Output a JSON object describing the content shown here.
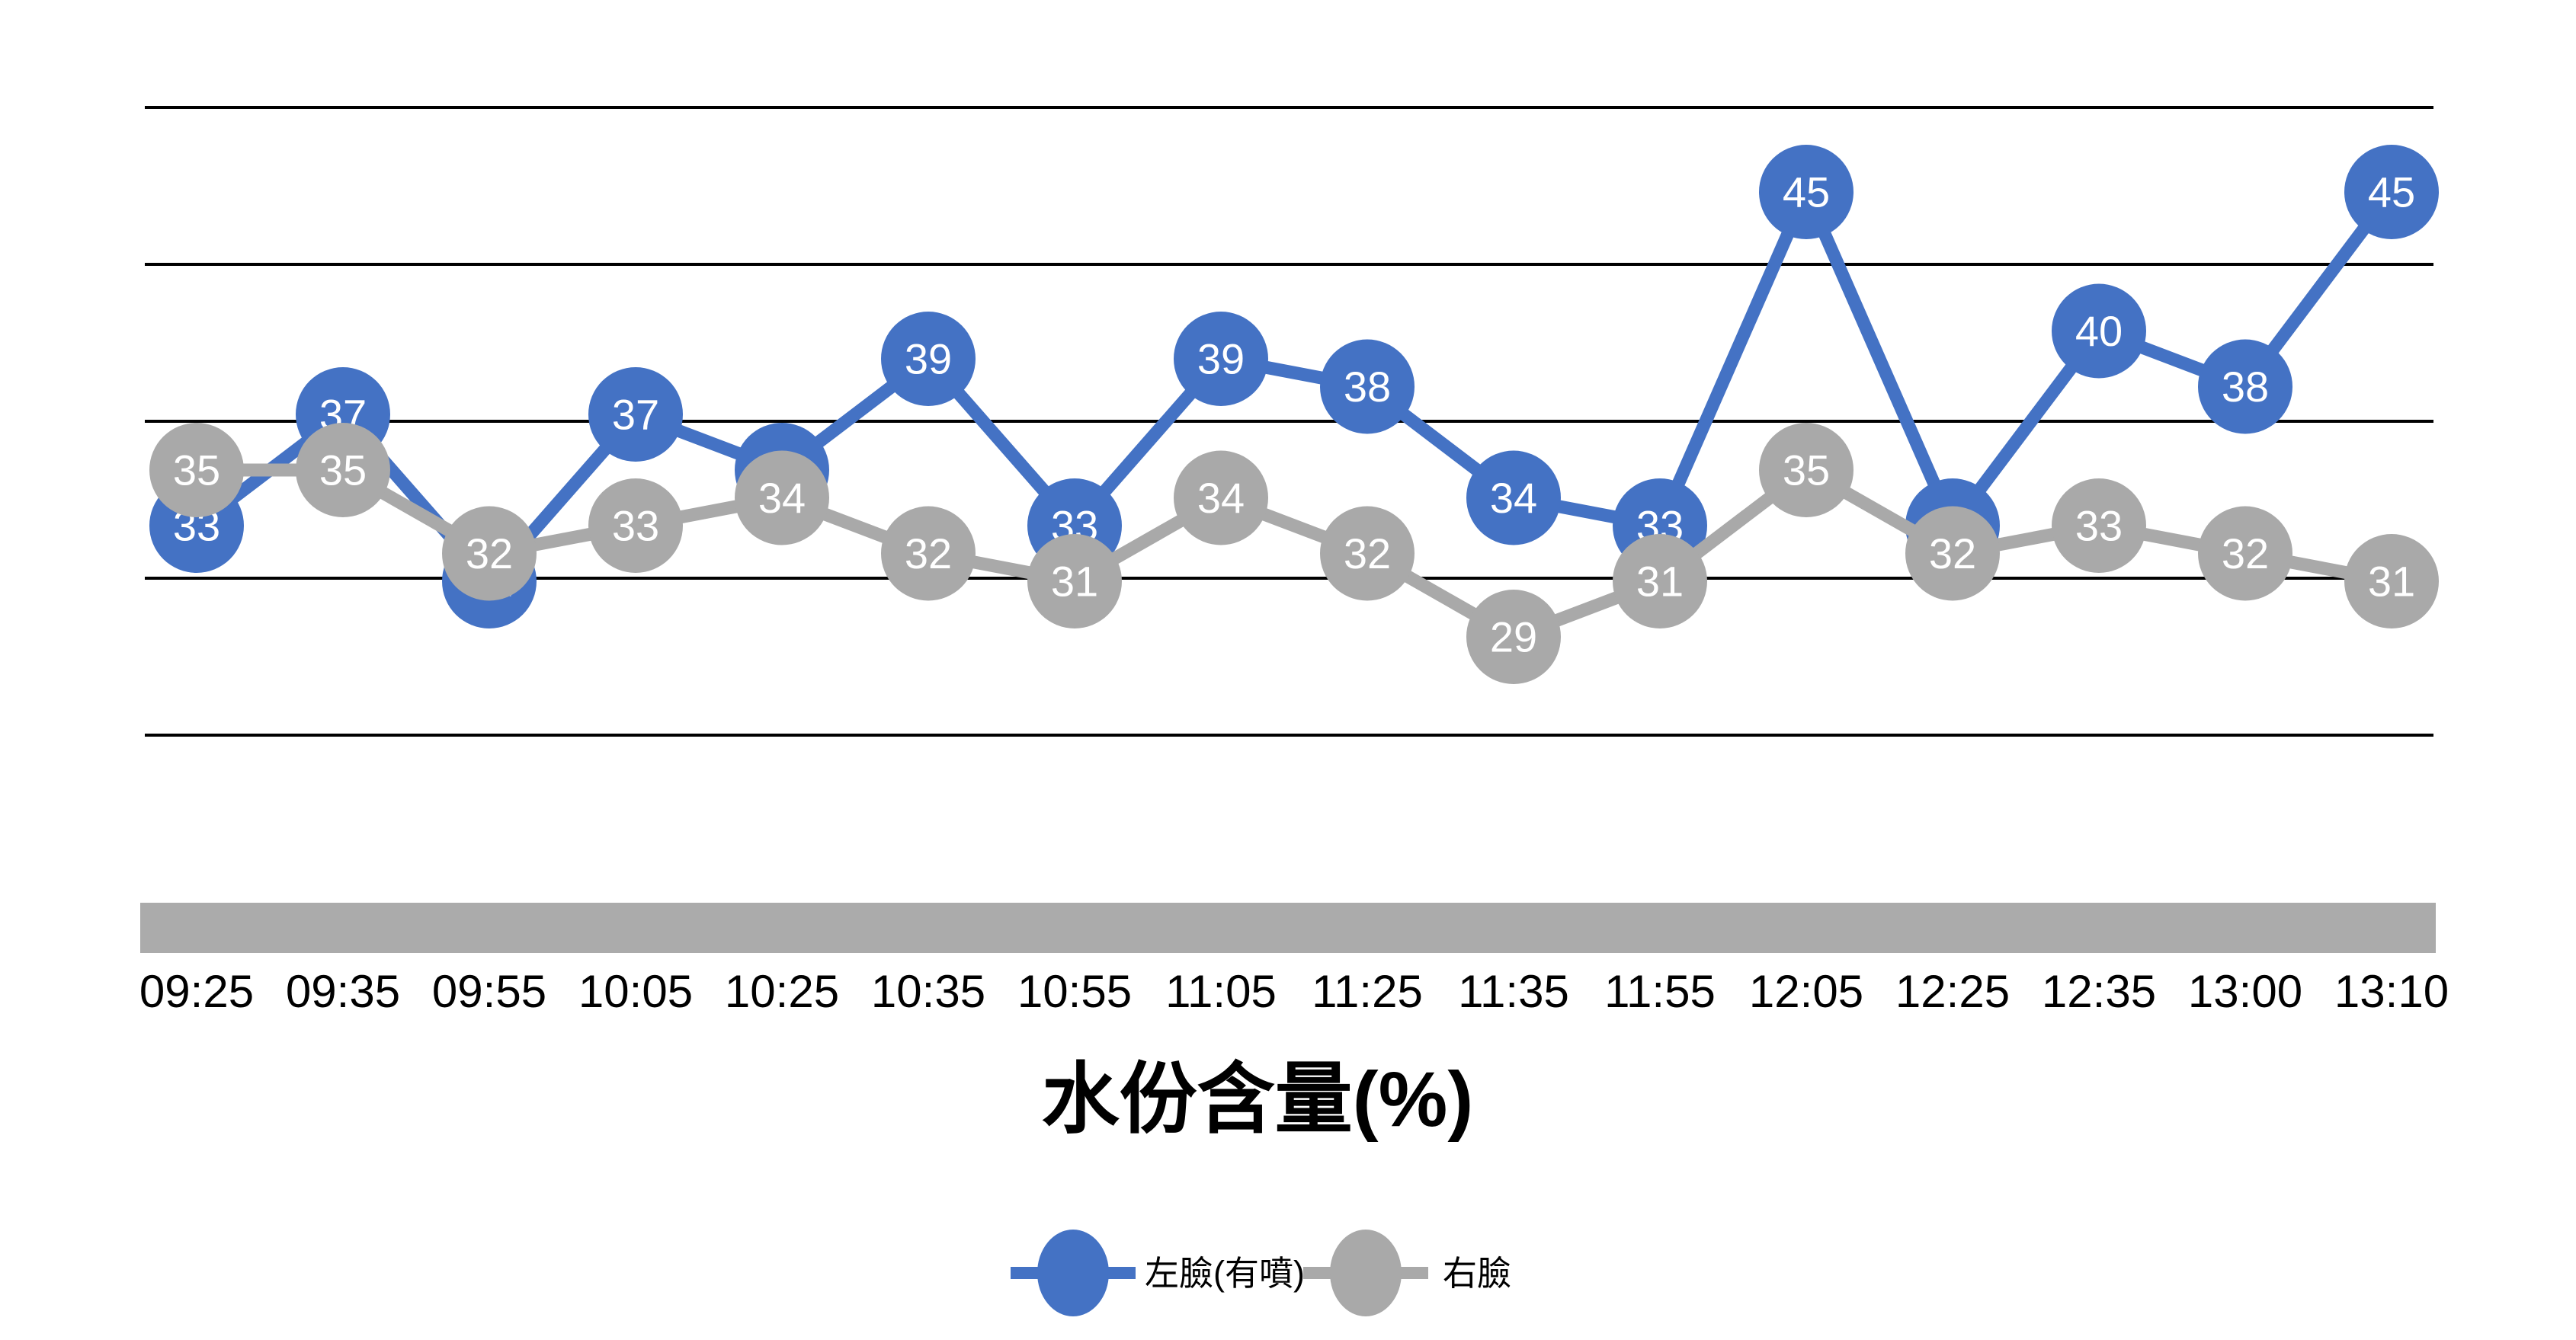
{
  "chart_data": {
    "type": "line",
    "title": "水份含量(%)",
    "categories": [
      "09:25",
      "09:35",
      "09:55",
      "10:05",
      "10:25",
      "10:35",
      "10:55",
      "11:05",
      "11:25",
      "11:35",
      "11:55",
      "12:05",
      "12:25",
      "12:35",
      "13:00",
      "13:10"
    ],
    "series": [
      {
        "name": "左臉(有噴)",
        "color": "#4472C4",
        "values": [
          33,
          37,
          31,
          37,
          35,
          39,
          33,
          39,
          38,
          34,
          33,
          45,
          33,
          40,
          38,
          45
        ]
      },
      {
        "name": "右臉",
        "color": "#A9A9A9",
        "values": [
          35,
          35,
          32,
          33,
          34,
          32,
          31,
          34,
          32,
          29,
          31,
          35,
          32,
          33,
          32,
          31
        ]
      }
    ],
    "ylim": [
      25,
      49
    ],
    "gridline_count": 5,
    "grid": "horizontal-only",
    "gridline_color": "#000000",
    "background": "#FFFFFF",
    "point_labels": "on",
    "marker_label_color": "#FFFFFF",
    "x_axis_bar_color": "#ABABAB",
    "legend_position": "bottom-center"
  },
  "legend": {
    "items": [
      {
        "label": "左臉(有噴)",
        "color": "#4472C4"
      },
      {
        "label": "右臉",
        "color": "#A9A9A9"
      }
    ]
  }
}
